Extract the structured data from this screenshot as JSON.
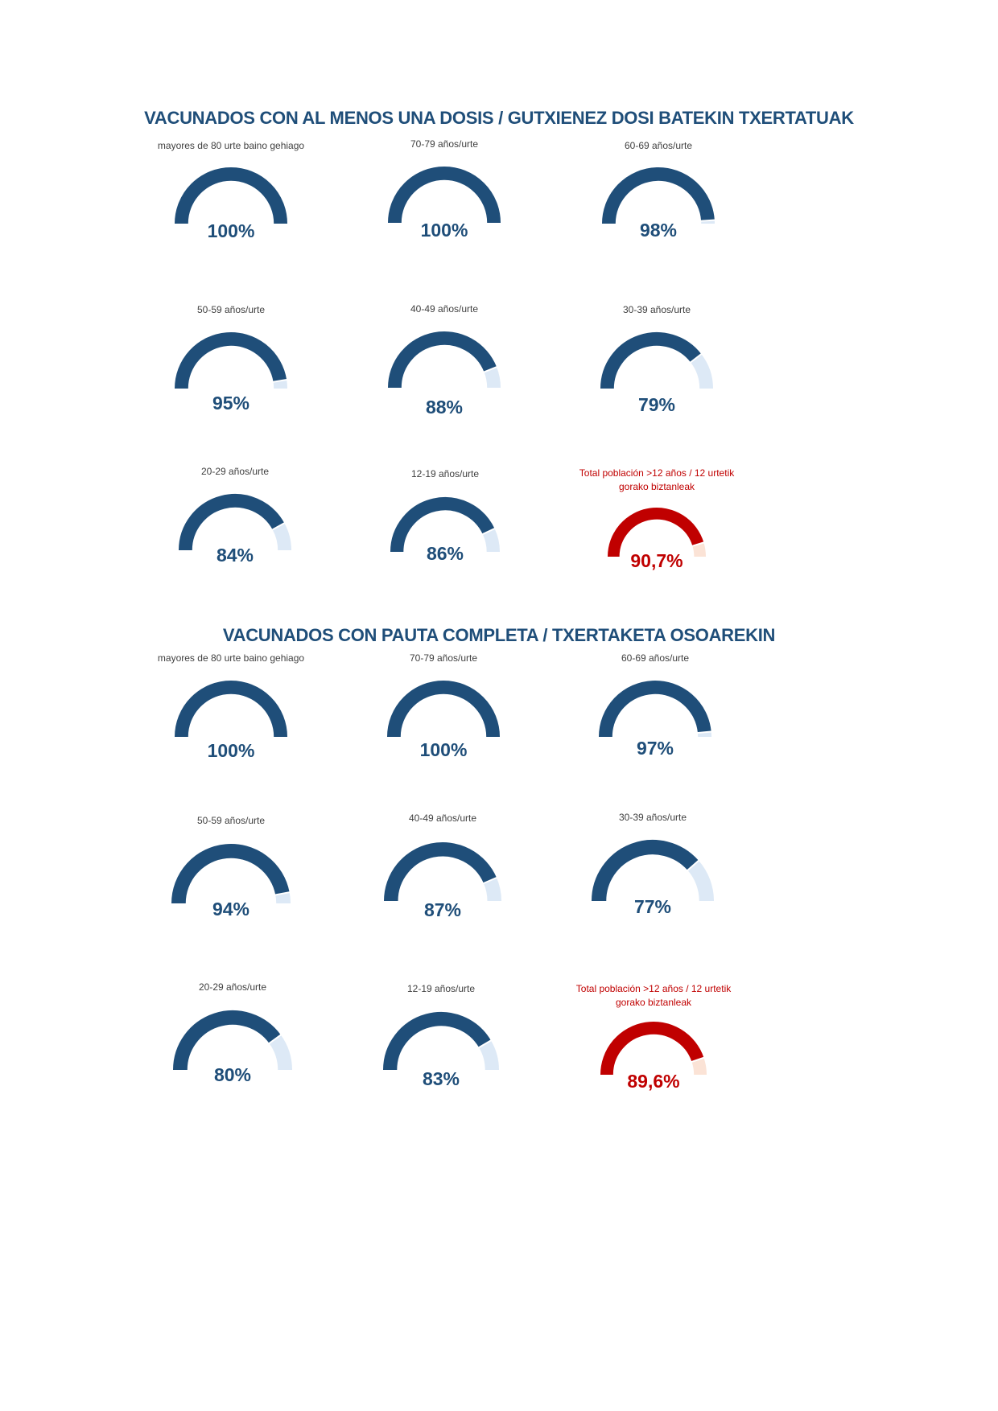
{
  "colors": {
    "blue": "#1f4e79",
    "blue_rest": "#dde9f6",
    "red": "#c00000",
    "red_rest": "#fbe3d6"
  },
  "chart_data": [
    {
      "type": "gauge",
      "title": "VACUNADOS CON AL MENOS UNA DOSIS  / GUTXIENEZ DOSI BATEKIN TXERTATUAK",
      "gauges": [
        {
          "label": "mayores de 80 urte baino gehiago",
          "value": 100,
          "text": "100%"
        },
        {
          "label": "70-79 años/urte",
          "value": 100,
          "text": "100%"
        },
        {
          "label": "60-69 años/urte",
          "value": 98,
          "text": "98%"
        },
        {
          "label": "50-59 años/urte",
          "value": 95,
          "text": "95%"
        },
        {
          "label": "40-49 años/urte",
          "value": 88,
          "text": "88%"
        },
        {
          "label": "30-39 años/urte",
          "value": 79,
          "text": "79%"
        },
        {
          "label": "20-29 años/urte",
          "value": 84,
          "text": "84%"
        },
        {
          "label": "12-19 años/urte",
          "value": 86,
          "text": "86%"
        },
        {
          "label": "Total población >12 años / 12 urtetik gorako biztanleak",
          "value": 90.7,
          "text": "90,7%",
          "highlight": true
        }
      ]
    },
    {
      "type": "gauge",
      "title": "VACUNADOS CON PAUTA COMPLETA  / TXERTAKETA OSOAREKIN",
      "gauges": [
        {
          "label": "mayores de 80 urte baino gehiago",
          "value": 100,
          "text": "100%"
        },
        {
          "label": "70-79 años/urte",
          "value": 100,
          "text": "100%"
        },
        {
          "label": "60-69 años/urte",
          "value": 97,
          "text": "97%"
        },
        {
          "label": "50-59 años/urte",
          "value": 94,
          "text": "94%"
        },
        {
          "label": "40-49 años/urte",
          "value": 87,
          "text": "87%"
        },
        {
          "label": "30-39 años/urte",
          "value": 77,
          "text": "77%"
        },
        {
          "label": "20-29 años/urte",
          "value": 80,
          "text": "80%"
        },
        {
          "label": "12-19 años/urte",
          "value": 83,
          "text": "83%"
        },
        {
          "label": "Total población >12 años / 12 urtetik gorako biztanleak",
          "value": 89.6,
          "text": "89,6%",
          "highlight": true
        }
      ]
    }
  ]
}
